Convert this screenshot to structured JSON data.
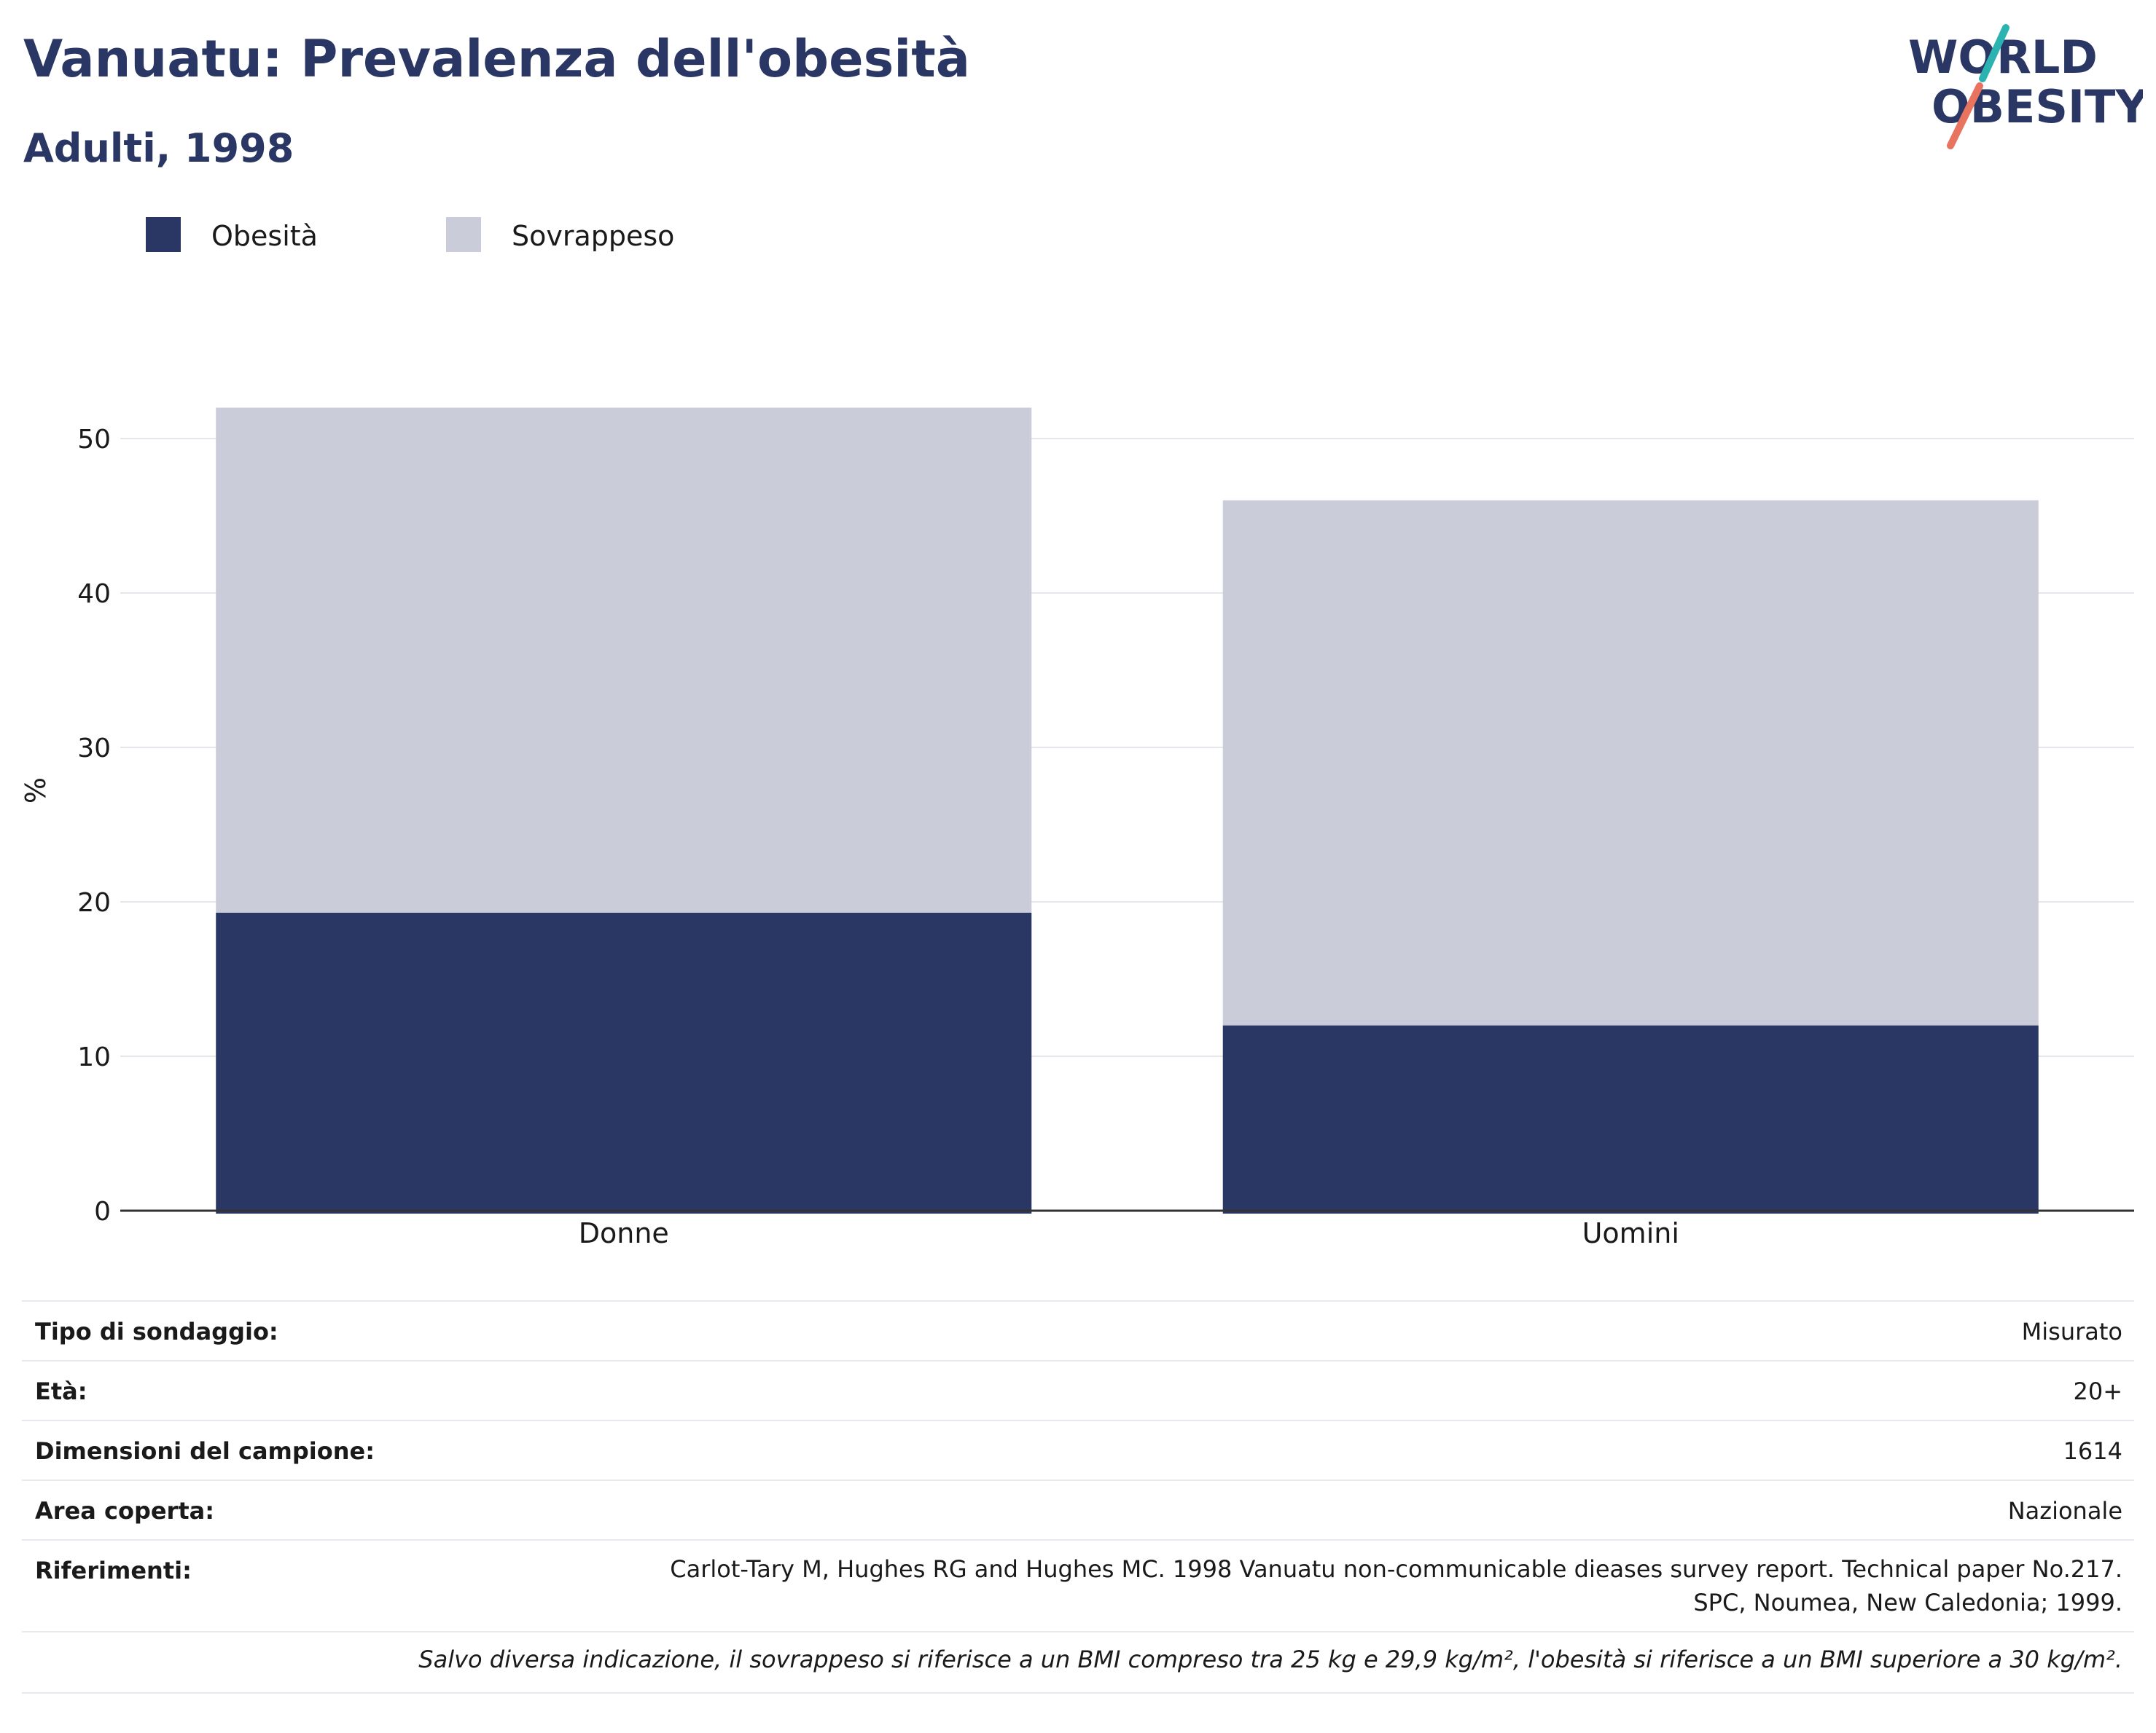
{
  "header": {
    "title": "Vanuatu: Prevalenza dell'obesità",
    "subtitle": "Adulti, 1998",
    "logo_line1": "WORLD",
    "logo_line2": "OBESITY"
  },
  "colors": {
    "obesity": "#2a3764",
    "overweight": "#cacdd9",
    "grid": "#e6e7ec",
    "axis": "#333333",
    "logo_teal": "#2bb3b1",
    "logo_coral": "#e8735f"
  },
  "chart_data": {
    "type": "bar",
    "stacked": true,
    "categories": [
      "Donne",
      "Uomini"
    ],
    "series": [
      {
        "name": "Obesità",
        "values": [
          19.3,
          12.0
        ]
      },
      {
        "name": "Sovrappeso",
        "values": [
          32.7,
          34.0
        ]
      }
    ],
    "title": "Vanuatu: Prevalenza dell'obesità",
    "subtitle": "Adulti, 1998",
    "ylabel": "%",
    "yticks": [
      0,
      10,
      20,
      30,
      40,
      50
    ],
    "ylim": [
      0,
      55
    ],
    "grid": true,
    "legend": "top-left"
  },
  "info": {
    "rows": [
      {
        "key": "Tipo di sondaggio:",
        "value": "Misurato"
      },
      {
        "key": "Età:",
        "value": "20+"
      },
      {
        "key": "Dimensioni del campione:",
        "value": "1614"
      },
      {
        "key": "Area coperta:",
        "value": "Nazionale"
      },
      {
        "key": "Riferimenti:",
        "value": "Carlot-Tary M, Hughes RG and Hughes MC. 1998 Vanuatu non-communicable dieases survey report. Technical paper No.217. SPC, Noumea, New Caledonia; 1999."
      }
    ],
    "note": "Salvo diversa indicazione, il sovrappeso si riferisce a un BMI compreso tra 25 kg e 29,9 kg/m², l'obesità si riferisce a un BMI superiore a 30 kg/m²."
  }
}
